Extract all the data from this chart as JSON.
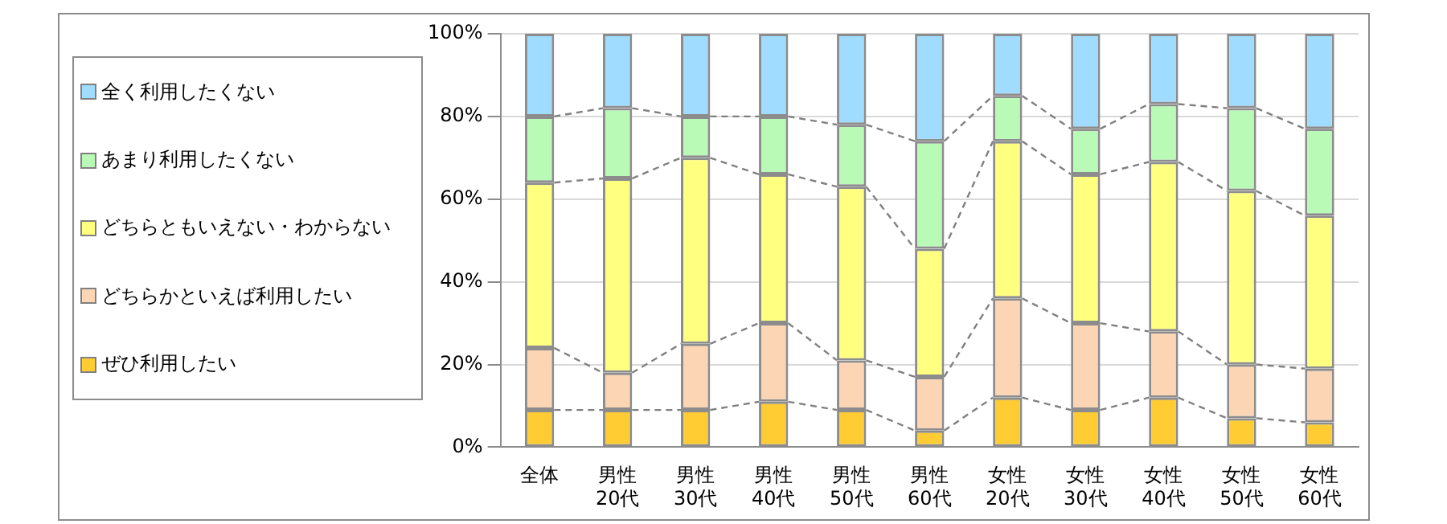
{
  "chart_data": {
    "type": "bar",
    "stacked": true,
    "categories": [
      "全体",
      "男性\n20代",
      "男性\n30代",
      "男性\n40代",
      "男性\n50代",
      "男性\n60代",
      "女性\n20代",
      "女性\n30代",
      "女性\n40代",
      "女性\n50代",
      "女性\n60代"
    ],
    "series": [
      {
        "name": "ぜひ利用したい",
        "color": "#ffcc33",
        "values": [
          9,
          9,
          9,
          11,
          9,
          4,
          12,
          9,
          12,
          7,
          6
        ]
      },
      {
        "name": "どちらかといえば利用したい",
        "color": "#fcd5b5",
        "values": [
          15,
          9,
          16,
          19,
          12,
          13,
          24,
          21,
          16,
          13,
          13
        ]
      },
      {
        "name": "どちらともいえない・わからない",
        "color": "#ffff80",
        "values": [
          40,
          47,
          45,
          36,
          42,
          31,
          38,
          36,
          41,
          42,
          37
        ]
      },
      {
        "name": "あまり利用したくない",
        "color": "#b9fbb6",
        "values": [
          16,
          17,
          10,
          14,
          15,
          26,
          11,
          11,
          14,
          20,
          21
        ]
      },
      {
        "name": "全く利用したくない",
        "color": "#9fdcff",
        "values": [
          20,
          18,
          20,
          20,
          22,
          26,
          15,
          23,
          17,
          18,
          23
        ]
      }
    ],
    "ylim": [
      0,
      100
    ],
    "yticks": [
      {
        "value": 0,
        "label": "0%"
      },
      {
        "value": 20,
        "label": "20%"
      },
      {
        "value": 40,
        "label": "40%"
      },
      {
        "value": 60,
        "label": "60%"
      },
      {
        "value": 80,
        "label": "80%"
      },
      {
        "value": 100,
        "label": "100%"
      }
    ],
    "grid": "y",
    "legend": "left"
  }
}
